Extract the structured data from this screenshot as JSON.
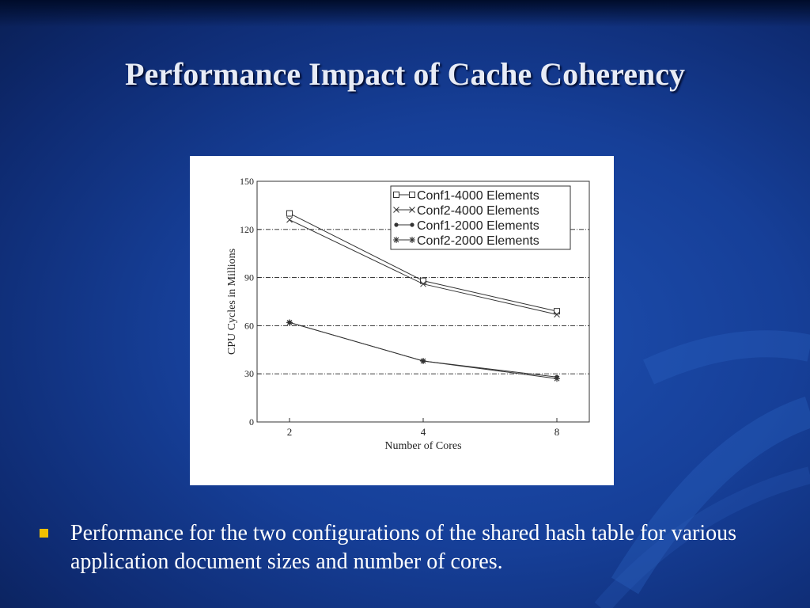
{
  "slide": {
    "title": "Performance Impact of Cache Coherency",
    "bullet": "Performance for the two configurations of the shared hash table for various application document sizes and number of cores."
  },
  "colors": {
    "background": "#163f98",
    "title_text": "#e8ecf6",
    "bullet_marker": "#f0c000",
    "chart_background": "#ffffff",
    "chart_lines": "#333333"
  },
  "chart_data": {
    "type": "line",
    "title": "",
    "xlabel": "Number of Cores",
    "ylabel": "CPU Cycles in Millions",
    "categories": [
      "2",
      "4",
      "8"
    ],
    "ylim": [
      0,
      150
    ],
    "yticks": [
      0,
      30,
      60,
      90,
      120,
      150
    ],
    "grid": "horizontal dash-dot",
    "legend_position": "top-right",
    "series": [
      {
        "name": "Conf1-4000 Elements",
        "marker": "square",
        "values": [
          130,
          88,
          69
        ]
      },
      {
        "name": "Conf2-4000 Elements",
        "marker": "x",
        "values": [
          126,
          86,
          67
        ]
      },
      {
        "name": "Conf1-2000 Elements",
        "marker": "dot",
        "values": [
          62,
          38,
          28
        ]
      },
      {
        "name": "Conf2-2000 Elements",
        "marker": "star",
        "values": [
          62,
          38,
          27
        ]
      }
    ]
  }
}
